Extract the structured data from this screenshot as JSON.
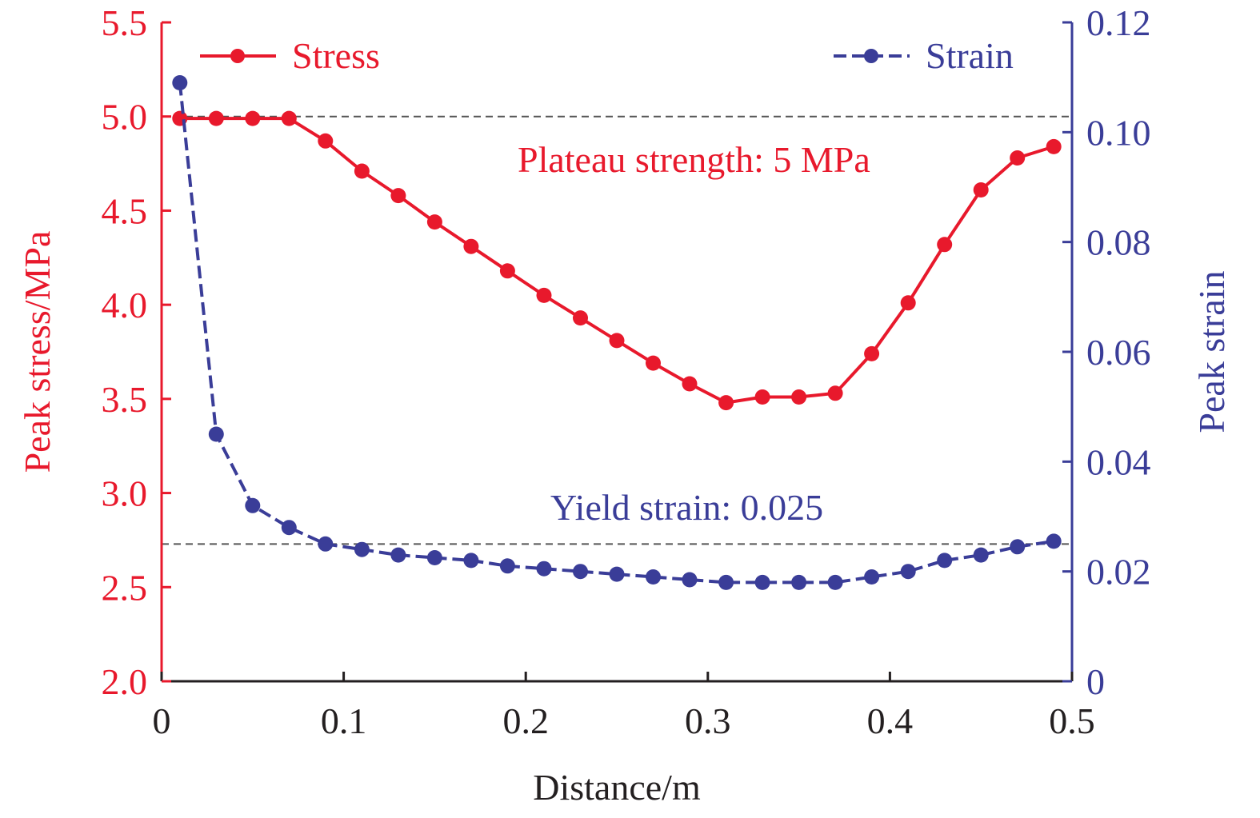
{
  "chart_data": {
    "type": "line",
    "xlabel": "Distance/m",
    "ylabel_left": "Peak stress/MPa",
    "ylabel_right": "Peak strain",
    "xlim": [
      0,
      0.5
    ],
    "ylim_left": [
      2.0,
      5.5
    ],
    "ylim_right": [
      0,
      0.12
    ],
    "x_ticks": [
      "0",
      "0.1",
      "0.2",
      "0.3",
      "0.4",
      "0.5"
    ],
    "y_left_ticks": [
      "2.0",
      "2.5",
      "3.0",
      "3.5",
      "4.0",
      "4.5",
      "5.0",
      "5.5"
    ],
    "y_right_ticks": [
      "0",
      "0.02",
      "0.04",
      "0.06",
      "0.08",
      "0.10",
      "0.12"
    ],
    "grid": false,
    "legend": [
      "top-left",
      "top-right"
    ],
    "series": [
      {
        "name": "Stress",
        "axis": "left",
        "color": "#e8192c",
        "line_style": "solid",
        "x": [
          0.01,
          0.03,
          0.05,
          0.07,
          0.09,
          0.11,
          0.13,
          0.15,
          0.17,
          0.19,
          0.21,
          0.23,
          0.25,
          0.27,
          0.29,
          0.31,
          0.33,
          0.35,
          0.37,
          0.39,
          0.41,
          0.43,
          0.45,
          0.47,
          0.49
        ],
        "values": [
          4.99,
          4.99,
          4.99,
          4.99,
          4.87,
          4.71,
          4.58,
          4.44,
          4.31,
          4.18,
          4.05,
          3.93,
          3.81,
          3.69,
          3.58,
          3.48,
          3.51,
          3.51,
          3.53,
          3.74,
          4.01,
          4.32,
          4.61,
          4.78,
          4.84
        ]
      },
      {
        "name": "Strain",
        "axis": "right",
        "color": "#3a3d98",
        "line_style": "dashed",
        "x": [
          0.01,
          0.03,
          0.05,
          0.07,
          0.09,
          0.11,
          0.13,
          0.15,
          0.17,
          0.19,
          0.21,
          0.23,
          0.25,
          0.27,
          0.29,
          0.31,
          0.33,
          0.35,
          0.37,
          0.39,
          0.41,
          0.43,
          0.45,
          0.47,
          0.49
        ],
        "values": [
          0.109,
          0.045,
          0.032,
          0.028,
          0.025,
          0.024,
          0.023,
          0.0225,
          0.022,
          0.021,
          0.0205,
          0.02,
          0.0195,
          0.019,
          0.0185,
          0.018,
          0.018,
          0.018,
          0.018,
          0.019,
          0.02,
          0.022,
          0.023,
          0.0245,
          0.0255
        ]
      }
    ],
    "reference_lines": [
      {
        "axis": "left",
        "value": 5.0,
        "label": "Plateau strength: 5 MPa",
        "label_color": "#e8192c"
      },
      {
        "axis": "right",
        "value": 0.025,
        "label": "Yield strain: 0.025",
        "label_color": "#3a3d98"
      }
    ],
    "colors": {
      "left_axis": "#e8192c",
      "right_axis": "#3a3d98",
      "bottom_axis": "#231f20",
      "reference_line": "#555555"
    }
  }
}
